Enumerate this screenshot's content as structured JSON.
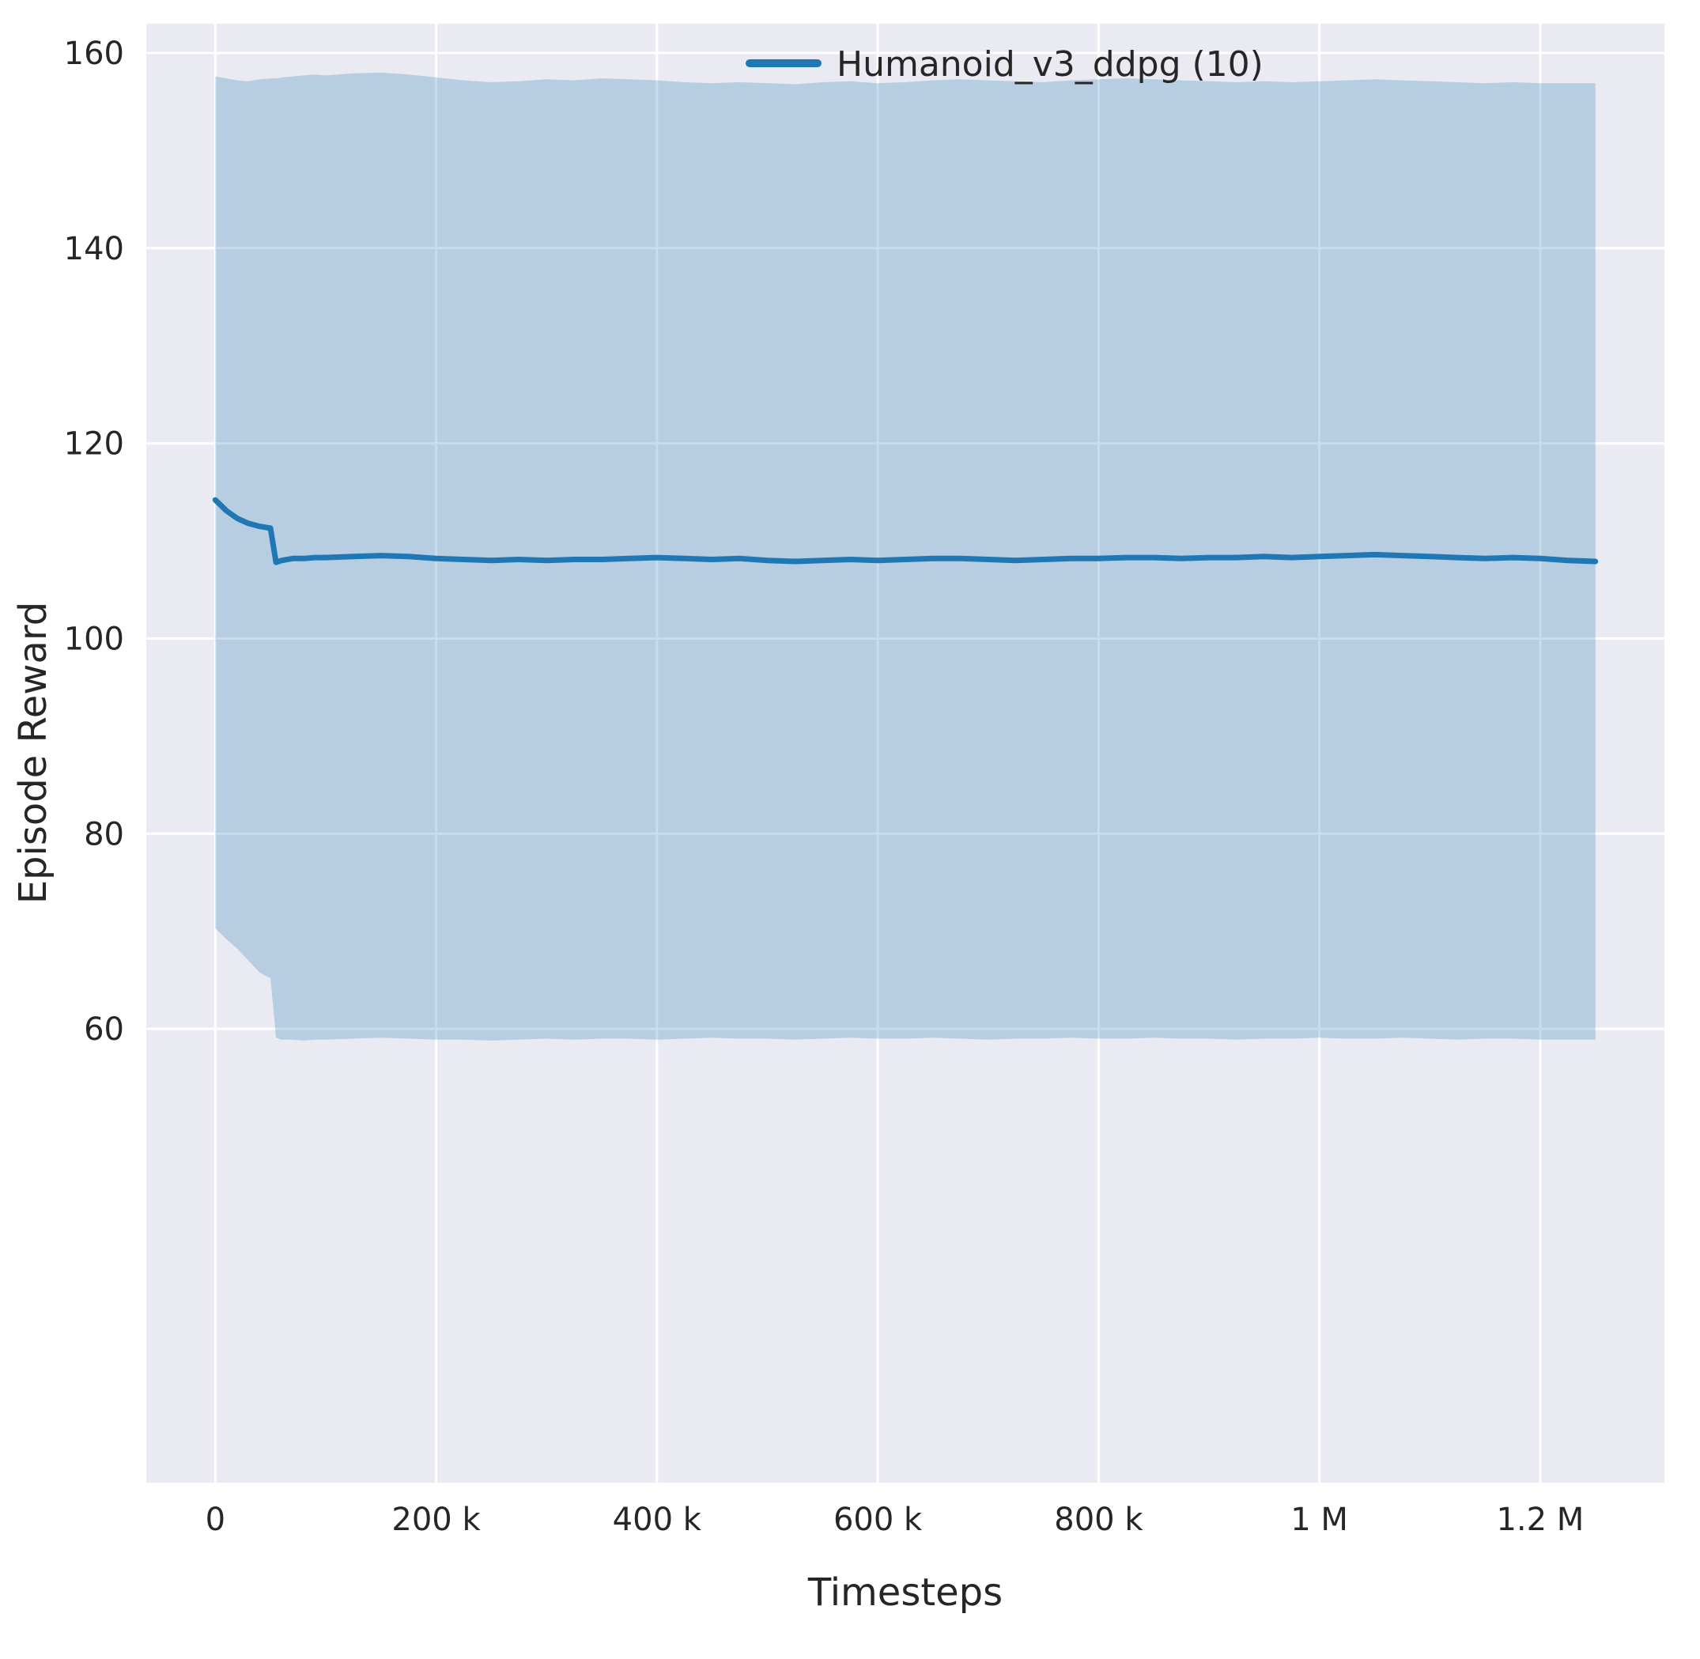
{
  "chart_data": {
    "type": "line",
    "title": "",
    "xlabel": "Timesteps",
    "ylabel": "Episode Reward",
    "grid": true,
    "legend_position": "upper-right-inside",
    "xlim": [
      -62500,
      1312500
    ],
    "ylim": [
      13.5,
      163
    ],
    "x_ticks": [
      0,
      200000,
      400000,
      600000,
      800000,
      1000000,
      1200000
    ],
    "x_tick_labels": [
      "0",
      "200 k",
      "400 k",
      "600 k",
      "800 k",
      "1 M",
      "1.2 M"
    ],
    "y_ticks": [
      60,
      80,
      100,
      120,
      140,
      160
    ],
    "y_tick_labels": [
      "60",
      "80",
      "100",
      "120",
      "140",
      "160"
    ],
    "style": {
      "plot_bg": "#eaeaf2",
      "grid_color": "#ffffff",
      "fig_bg": "#ffffff",
      "text_color": "#262626"
    },
    "series": [
      {
        "name": "Humanoid_v3_ddpg (10)",
        "color": "#1f77b4",
        "band_alpha": 0.25,
        "x": [
          0,
          10000,
          20000,
          30000,
          40000,
          50000,
          55000,
          60000,
          70000,
          80000,
          90000,
          100000,
          125000,
          150000,
          175000,
          200000,
          225000,
          250000,
          275000,
          300000,
          325000,
          350000,
          375000,
          400000,
          425000,
          450000,
          475000,
          500000,
          525000,
          550000,
          575000,
          600000,
          625000,
          650000,
          675000,
          700000,
          725000,
          750000,
          775000,
          800000,
          825000,
          850000,
          875000,
          900000,
          925000,
          950000,
          975000,
          1000000,
          1025000,
          1050000,
          1075000,
          1100000,
          1125000,
          1150000,
          1175000,
          1200000,
          1225000,
          1250000
        ],
        "mean": [
          114.2,
          113.1,
          112.3,
          111.8,
          111.5,
          111.3,
          107.8,
          108.0,
          108.2,
          108.2,
          108.3,
          108.3,
          108.4,
          108.5,
          108.4,
          108.2,
          108.1,
          108.0,
          108.1,
          108.0,
          108.1,
          108.1,
          108.2,
          108.3,
          108.2,
          108.1,
          108.2,
          108.0,
          107.9,
          108.0,
          108.1,
          108.0,
          108.1,
          108.2,
          108.2,
          108.1,
          108.0,
          108.1,
          108.2,
          108.2,
          108.3,
          108.3,
          108.2,
          108.3,
          108.3,
          108.4,
          108.3,
          108.4,
          108.5,
          108.6,
          108.5,
          108.4,
          108.3,
          108.2,
          108.3,
          108.2,
          108.0,
          107.9
        ],
        "upper": [
          157.6,
          157.4,
          157.2,
          157.1,
          157.3,
          157.4,
          157.4,
          157.5,
          157.6,
          157.7,
          157.8,
          157.7,
          157.9,
          158.0,
          157.8,
          157.5,
          157.2,
          157.0,
          157.1,
          157.3,
          157.2,
          157.4,
          157.3,
          157.2,
          157.0,
          156.9,
          157.0,
          156.9,
          156.8,
          157.0,
          157.1,
          156.9,
          157.0,
          157.2,
          157.3,
          157.2,
          157.1,
          157.0,
          157.2,
          157.3,
          157.4,
          157.3,
          157.2,
          157.1,
          157.0,
          157.1,
          157.0,
          157.1,
          157.2,
          157.3,
          157.2,
          157.1,
          157.0,
          156.9,
          157.0,
          156.9,
          156.9,
          156.9
        ],
        "lower": [
          70.3,
          69.2,
          68.2,
          67.0,
          65.8,
          65.2,
          59.1,
          58.9,
          58.9,
          58.8,
          58.9,
          58.9,
          59.0,
          59.1,
          59.0,
          58.9,
          58.9,
          58.8,
          58.9,
          59.0,
          58.9,
          59.0,
          59.0,
          58.9,
          59.0,
          59.1,
          59.0,
          59.0,
          58.9,
          59.0,
          59.1,
          59.0,
          59.0,
          59.1,
          59.0,
          58.9,
          59.0,
          59.0,
          59.1,
          59.0,
          59.0,
          59.1,
          59.0,
          59.0,
          58.9,
          59.0,
          59.0,
          59.1,
          59.0,
          59.0,
          59.1,
          59.0,
          58.9,
          59.0,
          59.0,
          58.9,
          58.9,
          58.9
        ]
      }
    ]
  }
}
